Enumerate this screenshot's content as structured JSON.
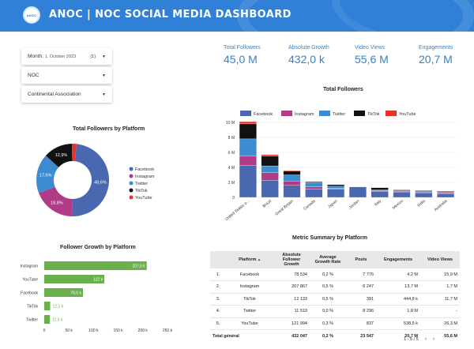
{
  "header": {
    "title": "ANOC | NOC SOCIAL MEDIA DASHBOARD",
    "logo_text": "ANOC"
  },
  "filters": {
    "month_label": "Month:",
    "month_value": "1. October 2023",
    "month_count": "(1)",
    "noc_label": "NOC",
    "continental_label": "Continental Association"
  },
  "kpis": [
    {
      "label": "Total Followers",
      "value": "45,0 M"
    },
    {
      "label": "Absolute Growth",
      "value": "432,0 k"
    },
    {
      "label": "Video Views",
      "value": "55,6 M"
    },
    {
      "label": "Engagements",
      "value": "20,7 M"
    }
  ],
  "colors": {
    "facebook": "#4a68b0",
    "instagram": "#b23b87",
    "twitter": "#3d8bd0",
    "tiktok": "#111111",
    "youtube": "#e8322a",
    "growth_bar": "#6ab04c"
  },
  "donut": {
    "title": "Total Followers by Platform",
    "legend": [
      "Facebook",
      "Instagram",
      "Twitter",
      "TikTok",
      "YouTube"
    ],
    "chart_data": {
      "type": "pie",
      "labels": [
        "Facebook",
        "Instagram",
        "Twitter",
        "TikTok",
        "YouTube"
      ],
      "values": [
        48.6,
        18.8,
        17.6,
        12.9,
        2.1
      ],
      "value_labels": [
        "48,6%",
        "18,8%",
        "17,6%",
        "12,9%",
        ""
      ]
    }
  },
  "stacked": {
    "title": "Total Followers",
    "legend": [
      "Facebook",
      "Instagram",
      "Twitter",
      "TikTok",
      "YouTube"
    ],
    "chart_data": {
      "type": "bar",
      "categories": [
        "United States o...",
        "Brazil",
        "Great Britain",
        "Canada",
        "Japan",
        "Jordan",
        "Italy",
        "Mexico",
        "India",
        "Australia"
      ],
      "series": [
        {
          "name": "Facebook",
          "values": [
            4.3,
            2.3,
            1.6,
            1.1,
            1.1,
            1.4,
            0.8,
            0.7,
            0.6,
            0.5
          ]
        },
        {
          "name": "Instagram",
          "values": [
            1.2,
            1.0,
            0.6,
            0.3,
            0.1,
            0.0,
            0.1,
            0.1,
            0.1,
            0.1
          ]
        },
        {
          "name": "Twitter",
          "values": [
            2.3,
            0.9,
            0.8,
            0.6,
            0.3,
            0.0,
            0.1,
            0.1,
            0.1,
            0.1
          ]
        },
        {
          "name": "TikTok",
          "values": [
            2.0,
            1.3,
            0.5,
            0.1,
            0.2,
            0.0,
            0.3,
            0.1,
            0.1,
            0.1
          ]
        },
        {
          "name": "YouTube",
          "values": [
            0.3,
            0.2,
            0.1,
            0.0,
            0.0,
            0.0,
            0.0,
            0.0,
            0.0,
            0.0
          ]
        }
      ],
      "ylim": [
        0,
        10
      ],
      "yticks": [
        "0",
        "2 M",
        "4 M",
        "6 M",
        "8 M",
        "10 M"
      ],
      "grid": true
    }
  },
  "growth": {
    "title": "Follower Growth by Platform",
    "chart_data": {
      "type": "bar",
      "orientation": "horizontal",
      "categories": [
        "Instagram",
        "YouTube",
        "Facebook",
        "TikTok",
        "Twitter"
      ],
      "values": [
        207.9,
        122,
        78.5,
        12.1,
        11.5
      ],
      "value_labels": [
        "207,9 k",
        "122 k",
        "78,5 k",
        "12,1 k",
        "11,5 k"
      ],
      "xlim": [
        0,
        250
      ],
      "xticks": [
        "0",
        "50 k",
        "100 k",
        "150 k",
        "200 k",
        "250 k"
      ]
    }
  },
  "table": {
    "title": "Metric Summary by Platform",
    "headers": [
      "",
      "Platform",
      "Absolute Follower Growth",
      "Average Growth Rate",
      "Posts",
      "Engagements",
      "Video Views"
    ],
    "sort_icon": "▲",
    "rows": [
      [
        "1.",
        "Facebook",
        "78 534",
        "0,2 %",
        "7 776",
        "4,2 M",
        "15,9 M"
      ],
      [
        "2.",
        "Instagram",
        "207 867",
        "0,5 %",
        "6 247",
        "13,7 M",
        "1,7 M"
      ],
      [
        "3.",
        "TikTok",
        "12 133",
        "0,5 %",
        "391",
        "444,8 k",
        "11,7 M"
      ],
      [
        "4.",
        "Twitter",
        "11 519",
        "0,0 %",
        "8 296",
        "1,8 M",
        "-"
      ],
      [
        "5.",
        "YouTube",
        "121 994",
        "0,3 %",
        "837",
        "538,5 k",
        "26,3 M"
      ]
    ],
    "total": [
      "Total général",
      "432 047",
      "0,2 %",
      "23 547",
      "20,7 M",
      "55,6 M"
    ],
    "pager": "1 - 5 / 5"
  }
}
